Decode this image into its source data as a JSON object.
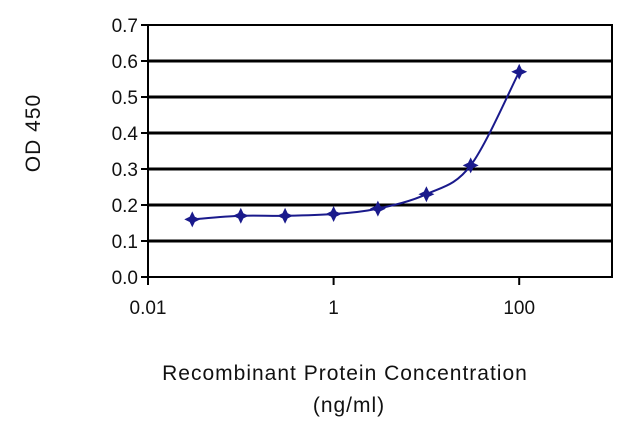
{
  "chart_data": {
    "type": "line",
    "xlabel": "Recombinant Protein Concentration",
    "xlabel_unit": "(ng/ml)",
    "ylabel": "OD 450",
    "x_scale": "log",
    "xlim": [
      0.01,
      1000
    ],
    "ylim": [
      0,
      0.7
    ],
    "x_ticks": [
      "0.01",
      "1",
      "100"
    ],
    "y_ticks": [
      "0.0",
      "0.1",
      "0.2",
      "0.3",
      "0.4",
      "0.5",
      "0.6",
      "0.7"
    ],
    "grid": "horizontal",
    "legend": "none",
    "series": [
      {
        "x": [
          0.03,
          0.1,
          0.3,
          1,
          3,
          10,
          30,
          100
        ],
        "y": [
          0.16,
          0.17,
          0.17,
          0.175,
          0.19,
          0.23,
          0.31,
          0.57
        ]
      }
    ],
    "colors": {
      "line": "#1a1a8c",
      "marker": "#1a1a8c",
      "grid": "#000000",
      "plot_bg": "#ffffff"
    }
  }
}
